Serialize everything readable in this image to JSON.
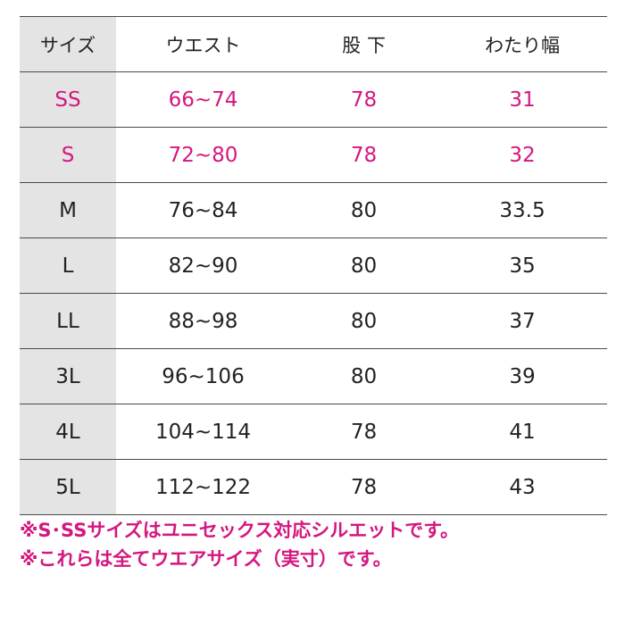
{
  "table": {
    "header": [
      "サイズ",
      "ウエスト",
      "股 下",
      "わたり幅"
    ],
    "rows": [
      [
        "SS",
        "66~74",
        "78",
        "31"
      ],
      [
        "S",
        "72~80",
        "78",
        "32"
      ],
      [
        "M",
        "76~84",
        "80",
        "33.5"
      ],
      [
        "L",
        "82~90",
        "80",
        "35"
      ],
      [
        "LL",
        "88~98",
        "80",
        "37"
      ],
      [
        "3L",
        "96~106",
        "80",
        "39"
      ],
      [
        "4L",
        "104~114",
        "78",
        "41"
      ],
      [
        "5L",
        "112~122",
        "78",
        "43"
      ]
    ]
  },
  "notes": [
    "※S･SSサイズはユニセックス対応シルエットです。",
    "※これらは全てウエアサイズ（実寸）です。"
  ]
}
